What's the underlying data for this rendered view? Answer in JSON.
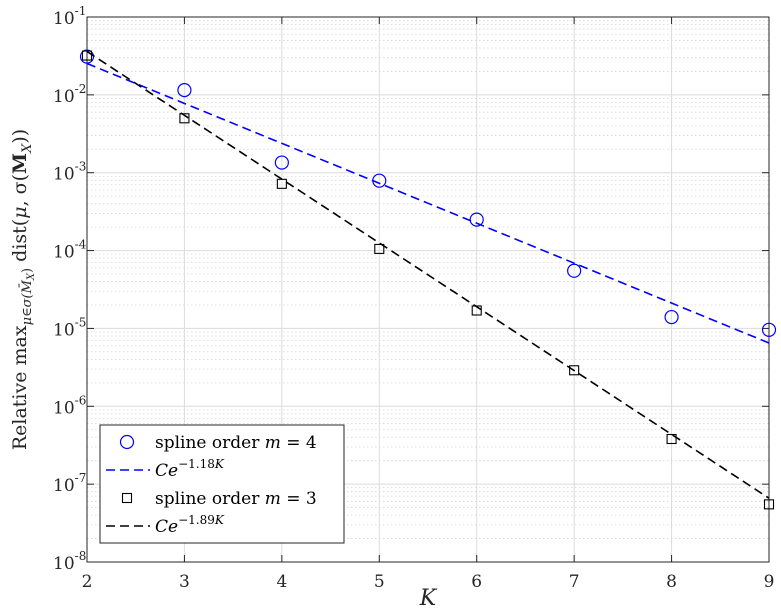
{
  "chart_data": {
    "type": "scatter",
    "xlabel": "K",
    "ylabel": "Relative max_{μ∈σ(M̄_X)} dist(μ, σ(M_X))",
    "xlim": [
      2,
      9
    ],
    "ylim": [
      1e-08,
      0.1
    ],
    "y_scale": "log",
    "grid": true,
    "minor_grid": true,
    "x_ticks": [
      "2",
      "3",
      "4",
      "5",
      "6",
      "7",
      "8",
      "9"
    ],
    "y_ticks": [
      {
        "base": "10",
        "exp": "-8"
      },
      {
        "base": "10",
        "exp": "-7"
      },
      {
        "base": "10",
        "exp": "-6"
      },
      {
        "base": "10",
        "exp": "-5"
      },
      {
        "base": "10",
        "exp": "-4"
      },
      {
        "base": "10",
        "exp": "-3"
      },
      {
        "base": "10",
        "exp": "-2"
      },
      {
        "base": "10",
        "exp": "-1"
      }
    ],
    "legend_placement": "bottom-left",
    "series": [
      {
        "name": "spline order m = 4",
        "kind": "markers",
        "marker": "circle",
        "color": "#0000ff",
        "x": [
          2,
          3,
          4,
          5,
          6,
          7,
          8,
          9
        ],
        "y": [
          0.031,
          0.0115,
          0.00135,
          0.00079,
          0.00025,
          5.5e-05,
          1.4e-05,
          9.6e-06
        ]
      },
      {
        "name": "Ce^{-1.18K}",
        "kind": "dashed-line",
        "color": "#0000ff",
        "x": [
          2,
          9
        ],
        "y": [
          0.0253,
          6.5e-06
        ]
      },
      {
        "name": "spline order m = 3",
        "kind": "markers",
        "marker": "square",
        "color": "#000000",
        "x": [
          2,
          3,
          4,
          5,
          6,
          7,
          8,
          9
        ],
        "y": [
          0.032,
          0.005,
          0.00072,
          0.000105,
          1.7e-05,
          2.9e-06,
          3.8e-07,
          5.5e-08
        ]
      },
      {
        "name": "Ce^{-1.89K}",
        "kind": "dashed-line",
        "color": "#000000",
        "x": [
          2,
          9
        ],
        "y": [
          0.0361,
          6.6e-08
        ]
      }
    ],
    "legend": [
      {
        "prefix": "spline order ",
        "var": "m",
        "suffix": " = 4",
        "symbol": "circle",
        "color": "#0000ff"
      },
      {
        "prefix": "",
        "var": "Ce",
        "exp": "−1.18",
        "expvar": "K",
        "symbol": "dash",
        "color": "#0000ff"
      },
      {
        "prefix": "spline order ",
        "var": "m",
        "suffix": " = 3",
        "symbol": "square",
        "color": "#000000"
      },
      {
        "prefix": "",
        "var": "Ce",
        "exp": "−1.89",
        "expvar": "K",
        "symbol": "dash",
        "color": "#000000"
      }
    ],
    "ylabel_parts": {
      "lead": "Relative max",
      "sub": "μ∈σ(M̄",
      "sub_x": "X",
      "sub_close": ")",
      "dist": " dist(",
      "mu": "μ",
      "sep": ", σ(",
      "M": "M",
      "X": "X",
      "close": "))"
    }
  }
}
